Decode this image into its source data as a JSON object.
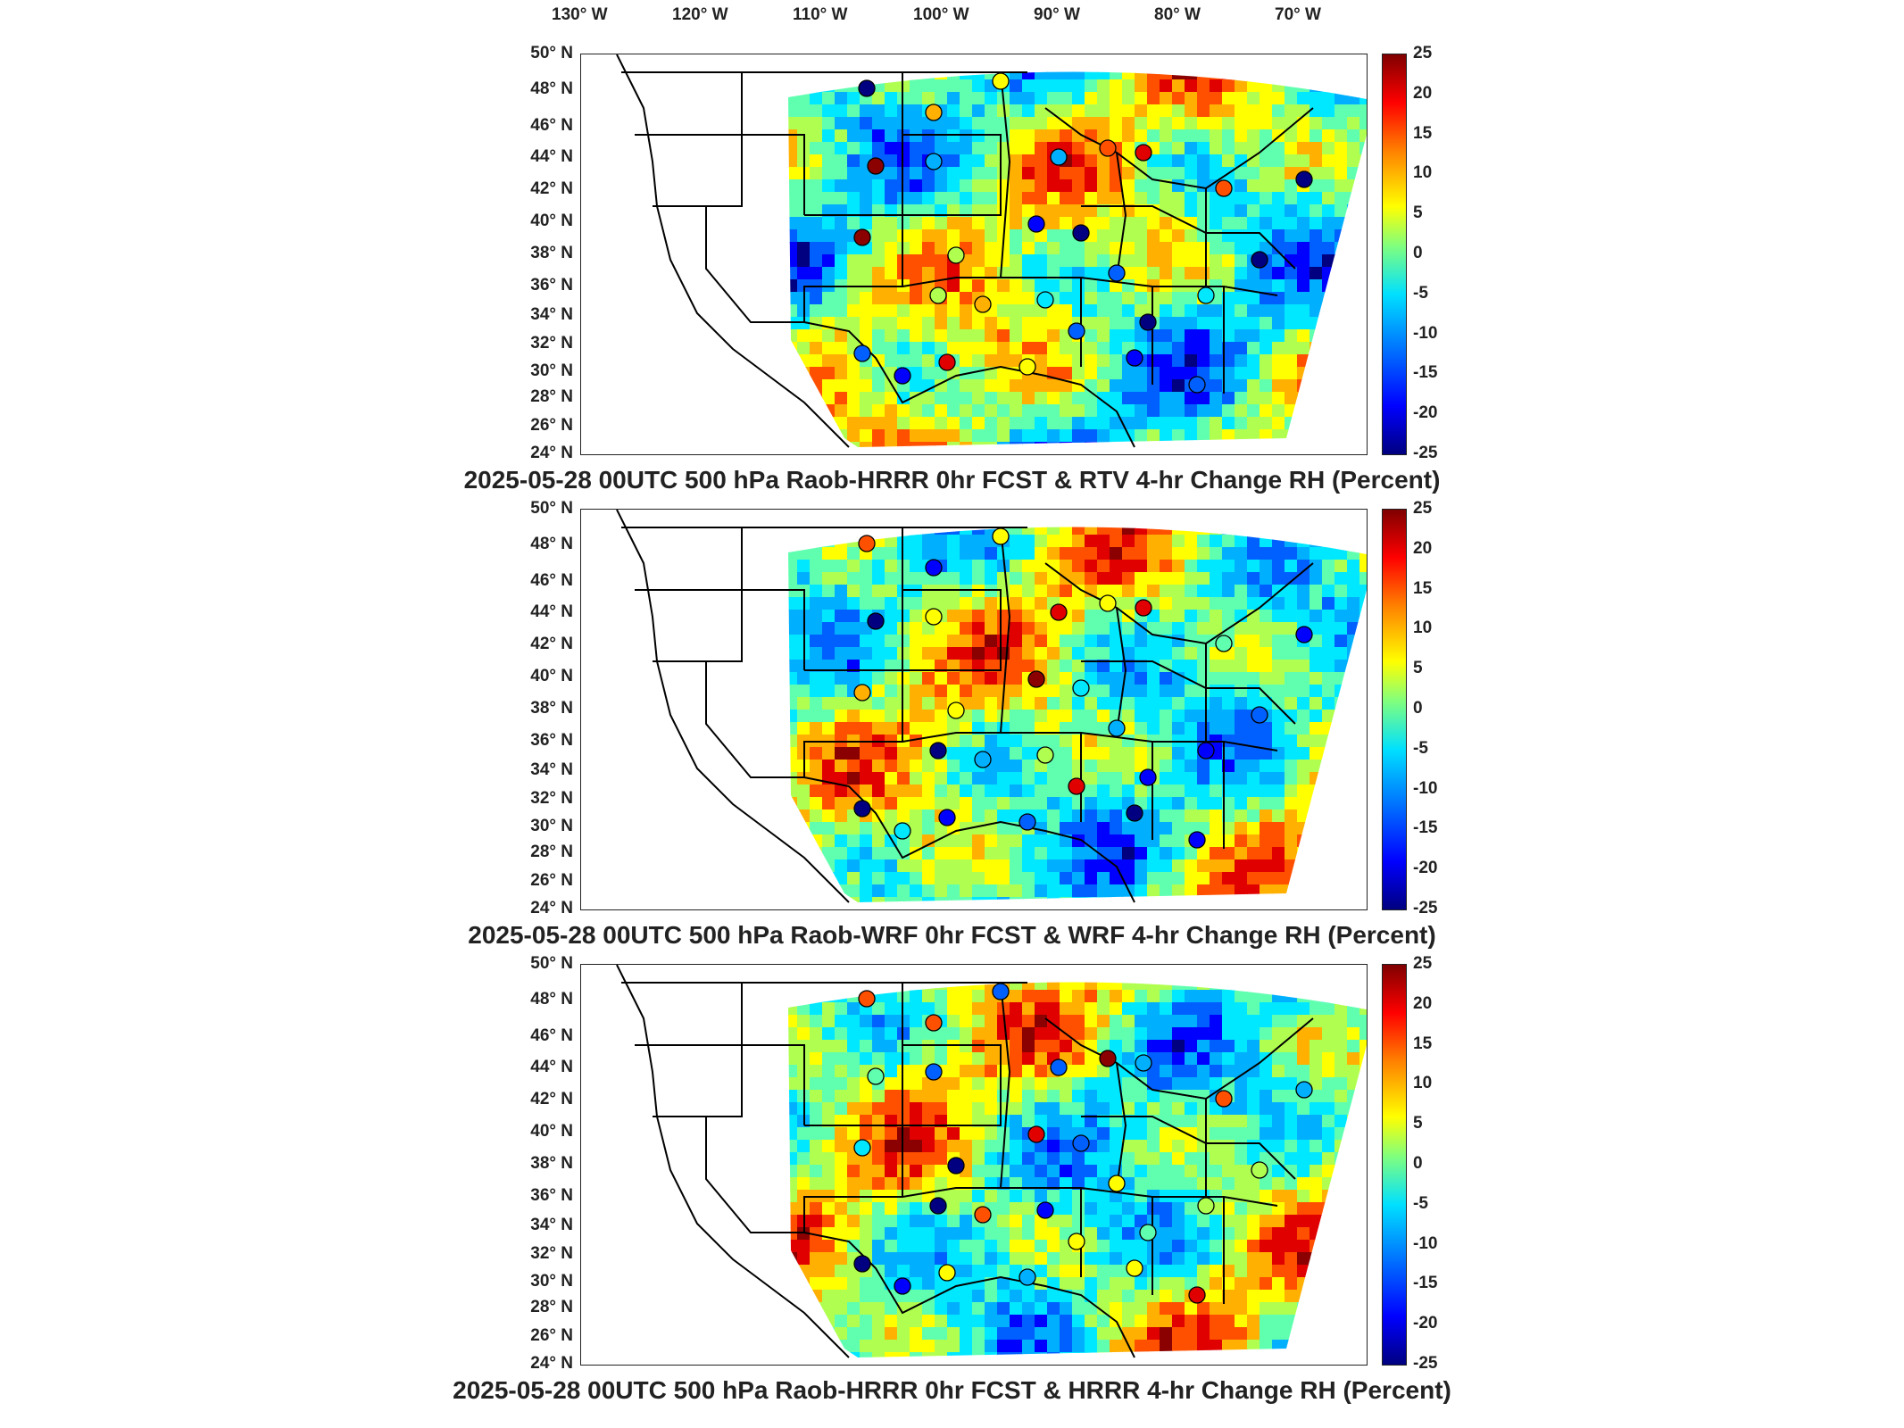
{
  "longitude_labels": [
    "130° W",
    "120° W",
    "110° W",
    "100° W",
    "90° W",
    "80° W",
    "70° W"
  ],
  "latitude_labels": [
    "50° N",
    "48° N",
    "46° N",
    "44° N",
    "42° N",
    "40° N",
    "38° N",
    "36° N",
    "34° N",
    "32° N",
    "30° N",
    "28° N",
    "26° N",
    "24° N"
  ],
  "colorbar_ticks": [
    "25",
    "20",
    "15",
    "10",
    "5",
    "0",
    "-5",
    "-10",
    "-15",
    "-20",
    "-25"
  ],
  "colorbar_range": [
    -25,
    25
  ],
  "colors": {
    "min": "#000080",
    "low": "#0080ff",
    "mid": "#7fff7f",
    "high": "#ff8000",
    "max": "#800000"
  },
  "panels": [
    {
      "title": "2025-05-28 00UTC 500 hPa Raob-HRRR 0hr FCST & RTV 4-hr Change RH (Percent)"
    },
    {
      "title": "2025-05-28 00UTC 500 hPa Raob-WRF 0hr FCST & WRF 4-hr Change RH (Percent)"
    },
    {
      "title": "2025-05-28 00UTC 500 hPa Raob-HRRR 0hr FCST & HRRR 4-hr Change RH (Percent)"
    }
  ]
}
